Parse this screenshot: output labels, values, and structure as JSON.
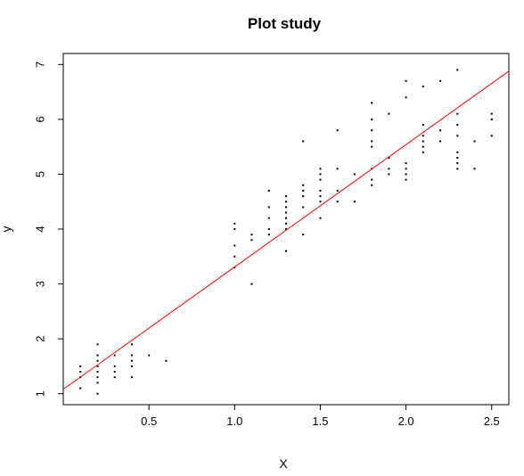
{
  "chart_data": {
    "type": "scatter",
    "title": "Plot study",
    "xlabel": "X",
    "ylabel": "y",
    "xlim": [
      0.0,
      2.6
    ],
    "ylim": [
      0.8,
      7.2
    ],
    "x_ticks": [
      0.5,
      1.0,
      1.5,
      2.0,
      2.5
    ],
    "x_tick_labels": [
      "0.5",
      "1.0",
      "1.5",
      "2.0",
      "2.5"
    ],
    "y_ticks": [
      1,
      2,
      3,
      4,
      5,
      6,
      7
    ],
    "y_tick_labels": [
      "1",
      "2",
      "3",
      "4",
      "5",
      "6",
      "7"
    ],
    "grid": false,
    "legend": "none",
    "point_color": "#000000",
    "line_color": "#ff0000",
    "regression_line": {
      "intercept": 1.08,
      "slope": 2.23
    },
    "points": [
      {
        "x": 0.1,
        "y": 1.1
      },
      {
        "x": 0.1,
        "y": 1.3
      },
      {
        "x": 0.1,
        "y": 1.4
      },
      {
        "x": 0.1,
        "y": 1.5
      },
      {
        "x": 0.2,
        "y": 1.0
      },
      {
        "x": 0.2,
        "y": 1.2
      },
      {
        "x": 0.2,
        "y": 1.3
      },
      {
        "x": 0.2,
        "y": 1.4
      },
      {
        "x": 0.2,
        "y": 1.5
      },
      {
        "x": 0.2,
        "y": 1.6
      },
      {
        "x": 0.2,
        "y": 1.7
      },
      {
        "x": 0.2,
        "y": 1.9
      },
      {
        "x": 0.3,
        "y": 1.3
      },
      {
        "x": 0.3,
        "y": 1.4
      },
      {
        "x": 0.3,
        "y": 1.5
      },
      {
        "x": 0.3,
        "y": 1.7
      },
      {
        "x": 0.4,
        "y": 1.3
      },
      {
        "x": 0.4,
        "y": 1.5
      },
      {
        "x": 0.4,
        "y": 1.6
      },
      {
        "x": 0.4,
        "y": 1.7
      },
      {
        "x": 0.4,
        "y": 1.9
      },
      {
        "x": 0.5,
        "y": 1.7
      },
      {
        "x": 0.6,
        "y": 1.6
      },
      {
        "x": 1.0,
        "y": 3.3
      },
      {
        "x": 1.0,
        "y": 3.5
      },
      {
        "x": 1.0,
        "y": 3.7
      },
      {
        "x": 1.0,
        "y": 4.0
      },
      {
        "x": 1.0,
        "y": 4.1
      },
      {
        "x": 1.1,
        "y": 3.0
      },
      {
        "x": 1.1,
        "y": 3.8
      },
      {
        "x": 1.1,
        "y": 3.9
      },
      {
        "x": 1.2,
        "y": 3.9
      },
      {
        "x": 1.2,
        "y": 4.0
      },
      {
        "x": 1.2,
        "y": 4.2
      },
      {
        "x": 1.2,
        "y": 4.4
      },
      {
        "x": 1.2,
        "y": 4.7
      },
      {
        "x": 1.3,
        "y": 3.6
      },
      {
        "x": 1.3,
        "y": 4.0
      },
      {
        "x": 1.3,
        "y": 4.1
      },
      {
        "x": 1.3,
        "y": 4.2
      },
      {
        "x": 1.3,
        "y": 4.3
      },
      {
        "x": 1.3,
        "y": 4.4
      },
      {
        "x": 1.3,
        "y": 4.5
      },
      {
        "x": 1.3,
        "y": 4.6
      },
      {
        "x": 1.4,
        "y": 3.9
      },
      {
        "x": 1.4,
        "y": 4.4
      },
      {
        "x": 1.4,
        "y": 4.6
      },
      {
        "x": 1.4,
        "y": 4.7
      },
      {
        "x": 1.4,
        "y": 4.8
      },
      {
        "x": 1.4,
        "y": 5.6
      },
      {
        "x": 1.5,
        "y": 4.2
      },
      {
        "x": 1.5,
        "y": 4.5
      },
      {
        "x": 1.5,
        "y": 4.6
      },
      {
        "x": 1.5,
        "y": 4.7
      },
      {
        "x": 1.5,
        "y": 4.9
      },
      {
        "x": 1.5,
        "y": 5.0
      },
      {
        "x": 1.5,
        "y": 5.1
      },
      {
        "x": 1.6,
        "y": 4.5
      },
      {
        "x": 1.6,
        "y": 4.7
      },
      {
        "x": 1.6,
        "y": 5.1
      },
      {
        "x": 1.6,
        "y": 5.8
      },
      {
        "x": 1.7,
        "y": 4.5
      },
      {
        "x": 1.7,
        "y": 5.0
      },
      {
        "x": 1.8,
        "y": 4.8
      },
      {
        "x": 1.8,
        "y": 4.9
      },
      {
        "x": 1.8,
        "y": 5.1
      },
      {
        "x": 1.8,
        "y": 5.5
      },
      {
        "x": 1.8,
        "y": 5.6
      },
      {
        "x": 1.8,
        "y": 5.8
      },
      {
        "x": 1.8,
        "y": 6.0
      },
      {
        "x": 1.8,
        "y": 6.3
      },
      {
        "x": 1.9,
        "y": 5.0
      },
      {
        "x": 1.9,
        "y": 5.1
      },
      {
        "x": 1.9,
        "y": 5.3
      },
      {
        "x": 1.9,
        "y": 6.1
      },
      {
        "x": 2.0,
        "y": 4.9
      },
      {
        "x": 2.0,
        "y": 5.0
      },
      {
        "x": 2.0,
        "y": 5.1
      },
      {
        "x": 2.0,
        "y": 5.2
      },
      {
        "x": 2.0,
        "y": 6.4
      },
      {
        "x": 2.0,
        "y": 6.7
      },
      {
        "x": 2.1,
        "y": 5.4
      },
      {
        "x": 2.1,
        "y": 5.5
      },
      {
        "x": 2.1,
        "y": 5.6
      },
      {
        "x": 2.1,
        "y": 5.7
      },
      {
        "x": 2.1,
        "y": 5.9
      },
      {
        "x": 2.1,
        "y": 6.6
      },
      {
        "x": 2.2,
        "y": 5.6
      },
      {
        "x": 2.2,
        "y": 5.8
      },
      {
        "x": 2.2,
        "y": 6.7
      },
      {
        "x": 2.3,
        "y": 5.1
      },
      {
        "x": 2.3,
        "y": 5.2
      },
      {
        "x": 2.3,
        "y": 5.3
      },
      {
        "x": 2.3,
        "y": 5.4
      },
      {
        "x": 2.3,
        "y": 5.7
      },
      {
        "x": 2.3,
        "y": 5.9
      },
      {
        "x": 2.3,
        "y": 6.1
      },
      {
        "x": 2.3,
        "y": 6.9
      },
      {
        "x": 2.4,
        "y": 5.1
      },
      {
        "x": 2.4,
        "y": 5.6
      },
      {
        "x": 2.5,
        "y": 5.7
      },
      {
        "x": 2.5,
        "y": 6.0
      },
      {
        "x": 2.5,
        "y": 6.1
      }
    ]
  }
}
